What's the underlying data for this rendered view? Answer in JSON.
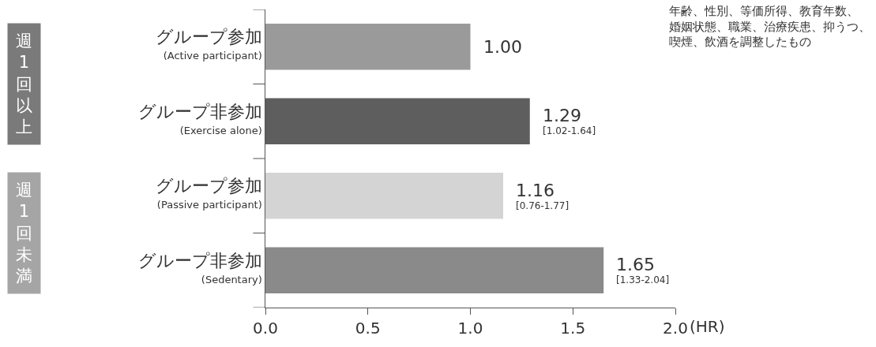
{
  "chart_data": {
    "type": "bar",
    "orientation": "horizontal",
    "categories": [
      "グループ参加\n(Active participant)",
      "グループ非参加\n(Exercise alone)",
      "グループ参加\n(Passive participant)",
      "グループ非参加\n(Sedentary)"
    ],
    "values": [
      1.0,
      1.29,
      1.16,
      1.65
    ],
    "colors": [
      "#9a9a9a",
      "#5e5e5e",
      "#d4d4d4",
      "#8a8a8a"
    ],
    "value_labels": [
      "1.00",
      "1.29\n[1.02-1.64]",
      "1.16\n[0.76-1.77]",
      "1.65\n[1.33-2.04]"
    ],
    "xlim": [
      0,
      2.0
    ],
    "xticks": [
      {
        "value": 0,
        "label": "0.0"
      },
      0.5,
      {
        "value": 1,
        "label": "1.0"
      },
      1.5,
      {
        "value": 2,
        "label": "2.0"
      }
    ],
    "xlabel": "(HR)",
    "annotations": [
      "年齢、性別、等価所得、教育年数、婚姻状態、職業、治療疾患、抑うつ、喫煙、飲酒を調整したもの",
      "週1回以上",
      "週1回未満"
    ]
  }
}
